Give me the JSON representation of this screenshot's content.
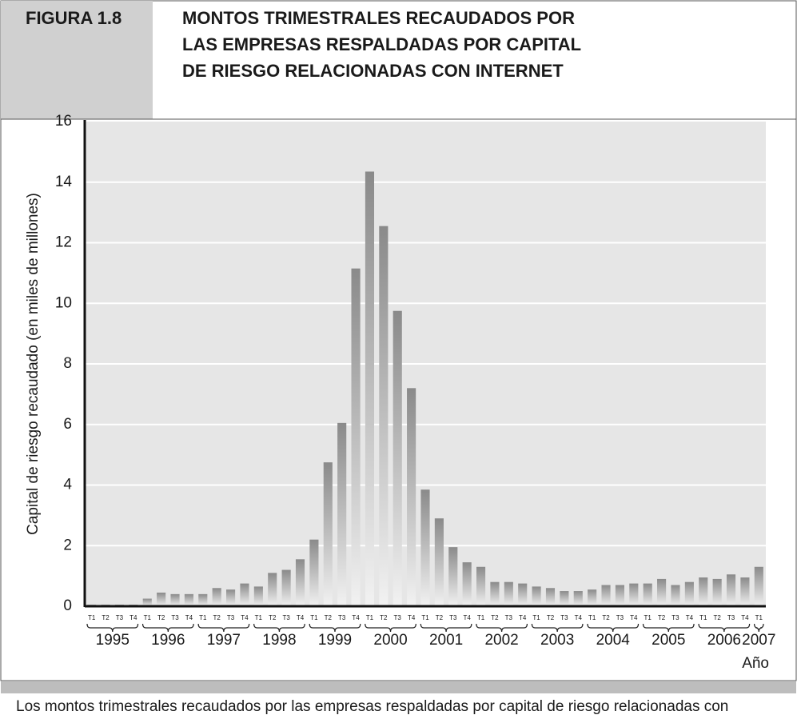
{
  "figure_label": "FIGURA 1.8",
  "chart_data": {
    "type": "bar",
    "title": [
      "MONTOS TRIMESTRALES RECAUDADOS POR",
      "LAS EMPRESAS RESPALDADAS POR CAPITAL",
      "DE RIESGO RELACIONADAS CON INTERNET"
    ],
    "ylabel": "Capital de riesgo recaudado (en miles de millones)",
    "xlabel": "Año",
    "categories": [
      "T1",
      "T2",
      "T3",
      "T4",
      "T1",
      "T2",
      "T3",
      "T4",
      "T1",
      "T2",
      "T3",
      "T4",
      "T1",
      "T2",
      "T3",
      "T4",
      "T1",
      "T2",
      "T3",
      "T4",
      "T1",
      "T2",
      "T3",
      "T4",
      "T1",
      "T2",
      "T3",
      "T4",
      "T1",
      "T2",
      "T3",
      "T4",
      "T1",
      "T2",
      "T3",
      "T4",
      "T1",
      "T2",
      "T3",
      "T4",
      "T1",
      "T2",
      "T3",
      "T4",
      "T1",
      "T2",
      "T3",
      "T4",
      "T1"
    ],
    "years": [
      "1995",
      "1996",
      "1997",
      "1998",
      "1999",
      "2000",
      "2001",
      "2002",
      "2003",
      "2004",
      "2005",
      "2006",
      "2007"
    ],
    "values": [
      0.05,
      0.05,
      0.05,
      0.05,
      0.25,
      0.45,
      0.4,
      0.4,
      0.4,
      0.6,
      0.55,
      0.75,
      0.65,
      1.1,
      1.2,
      1.55,
      2.2,
      4.75,
      6.05,
      11.15,
      14.35,
      12.55,
      9.75,
      7.2,
      3.85,
      2.9,
      1.95,
      1.45,
      1.3,
      0.8,
      0.8,
      0.75,
      0.65,
      0.6,
      0.5,
      0.5,
      0.55,
      0.7,
      0.7,
      0.75,
      0.75,
      0.9,
      0.7,
      0.8,
      0.95,
      0.9,
      1.05,
      0.95,
      1.3
    ],
    "ylim": [
      0,
      16
    ],
    "yticks": [
      0,
      2,
      4,
      6,
      8,
      10,
      12,
      14,
      16
    ],
    "grid": true
  },
  "caption": "Los montos trimestrales recaudados por las empresas respaldadas por capital de riesgo relacionadas con"
}
